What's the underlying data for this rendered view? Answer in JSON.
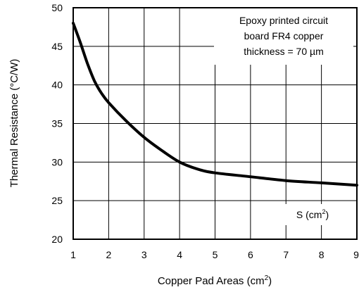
{
  "chart_data": {
    "type": "line",
    "title": "",
    "xlabel": "Copper Pad Areas (cm",
    "xlabel_sup": "2",
    "xlabel_end": ")",
    "ylabel": "Thermal Resistance (°C/W)",
    "xlim": [
      1,
      9
    ],
    "ylim": [
      20,
      50
    ],
    "xticks": [
      1,
      2,
      3,
      4,
      5,
      6,
      7,
      8,
      9
    ],
    "yticks": [
      20,
      25,
      30,
      35,
      40,
      45,
      50
    ],
    "grid": true,
    "note_lines": [
      "Epoxy printed circuit",
      "board FR4 copper",
      "thickness = 70 µm"
    ],
    "curve_label": "S (cm",
    "curve_label_sup": "2",
    "curve_label_end": ")",
    "series": [
      {
        "color": "#000000",
        "x": [
          1.0,
          1.2,
          1.4,
          1.6,
          1.8,
          2.0,
          2.5,
          3.0,
          3.5,
          4.0,
          4.5,
          5.0,
          6.0,
          7.0,
          8.0,
          9.0
        ],
        "y": [
          48.0,
          45.5,
          42.8,
          40.5,
          38.9,
          37.7,
          35.3,
          33.2,
          31.5,
          30.0,
          29.1,
          28.6,
          28.1,
          27.6,
          27.3,
          27.0
        ]
      }
    ]
  }
}
